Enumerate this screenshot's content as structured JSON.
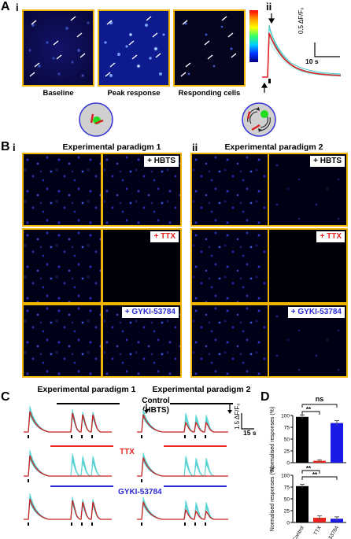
{
  "panel_a": {
    "label": "A",
    "sub_i": "i",
    "sub_ii": "ii",
    "captions": [
      "Baseline",
      "Peak response",
      "Responding cells"
    ],
    "scale_y": "0.5 ΔF/F₀",
    "scale_x": "10 s"
  },
  "panel_b": {
    "label": "B",
    "sub_i": "i",
    "sub_ii": "ii",
    "paradigm1": "Experimental paradigm 1",
    "paradigm2": "Experimental paradigm 2",
    "tags": [
      "+ HBTS",
      "+ TTX",
      "+ GYKI-53784"
    ],
    "tag_colors": [
      "#000000",
      "#e8251f",
      "#2b2bd6"
    ]
  },
  "panel_c": {
    "label": "C",
    "paradigm1": "Experimental paradigm 1",
    "paradigm2": "Experimental paradigm 2",
    "control_line1": "Control",
    "control_line2": "(HBTS)",
    "ttx": "TTX",
    "gyki": "GYKI-53784",
    "scale_y": "1.5 ΔF/F₀",
    "scale_x": "15 s"
  },
  "panel_d": {
    "label": "D",
    "ns": "ns",
    "sig1": "**",
    "sig2": "**",
    "sig3": "**",
    "ylabel": "Normalised responses (%)",
    "categories": [
      "Control",
      "TTX",
      "GYKI-53784"
    ],
    "colors": [
      "#000000",
      "#e8251f",
      "#1a1ae6"
    ]
  },
  "chart_data": [
    {
      "type": "bar",
      "categories": [
        "Control",
        "TTX",
        "GYKI-53784"
      ],
      "values": [
        97,
        4,
        84
      ],
      "errors": [
        4,
        2,
        5
      ],
      "ylabel": "Normalised responses (%)",
      "ylim": [
        0,
        100
      ],
      "yticks": [
        0,
        25,
        50,
        75,
        100
      ]
    },
    {
      "type": "bar",
      "categories": [
        "Control",
        "TTX",
        "GYKI-53784"
      ],
      "values": [
        77,
        10,
        8
      ],
      "errors": [
        4,
        4,
        4
      ],
      "ylabel": "Normalised responses (%)",
      "ylim": [
        0,
        100
      ],
      "yticks": [
        0,
        25,
        50,
        75,
        100
      ]
    }
  ]
}
